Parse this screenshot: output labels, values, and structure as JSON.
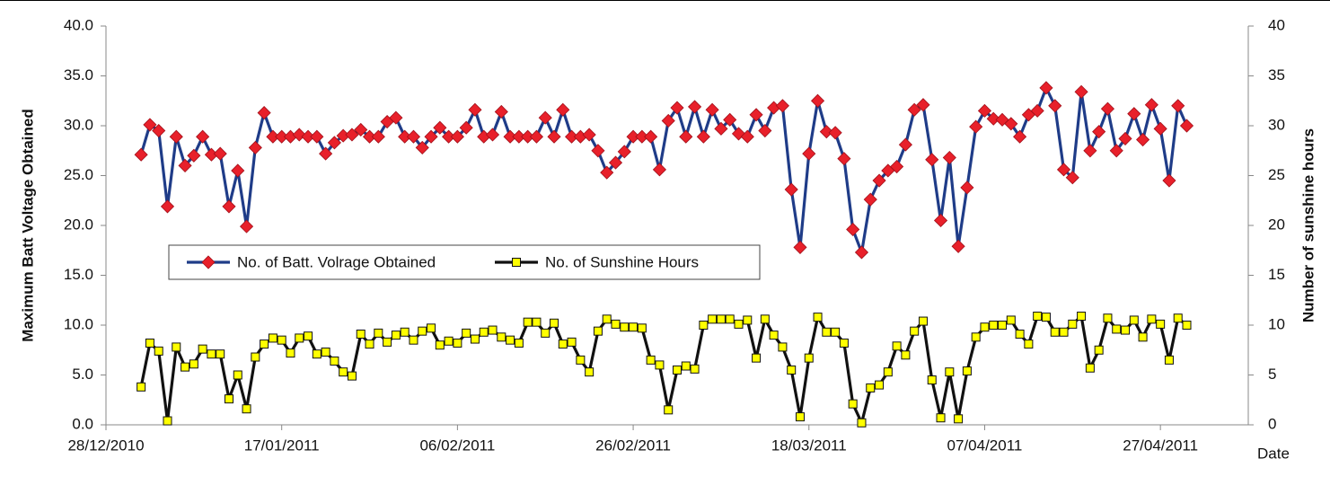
{
  "chart_data": {
    "type": "line",
    "y_label": "Maximum Batt Voltage Obtained",
    "y2_label": "Number of sunshine hours",
    "x_label": "Date",
    "x": [
      "2011-01-01",
      "2011-01-02",
      "2011-01-03",
      "2011-01-04",
      "2011-01-05",
      "2011-01-06",
      "2011-01-07",
      "2011-01-08",
      "2011-01-09",
      "2011-01-10",
      "2011-01-11",
      "2011-01-12",
      "2011-01-13",
      "2011-01-14",
      "2011-01-15",
      "2011-01-16",
      "2011-01-17",
      "2011-01-18",
      "2011-01-19",
      "2011-01-20",
      "2011-01-21",
      "2011-01-22",
      "2011-01-23",
      "2011-01-24",
      "2011-01-25",
      "2011-01-26",
      "2011-01-27",
      "2011-01-28",
      "2011-01-29",
      "2011-01-30",
      "2011-01-31",
      "2011-02-01",
      "2011-02-02",
      "2011-02-03",
      "2011-02-04",
      "2011-02-05",
      "2011-02-06",
      "2011-02-07",
      "2011-02-08",
      "2011-02-09",
      "2011-02-10",
      "2011-02-11",
      "2011-02-12",
      "2011-02-13",
      "2011-02-14",
      "2011-02-15",
      "2011-02-16",
      "2011-02-17",
      "2011-02-18",
      "2011-02-19",
      "2011-02-20",
      "2011-02-21",
      "2011-02-22",
      "2011-02-23",
      "2011-02-24",
      "2011-02-25",
      "2011-02-26",
      "2011-02-27",
      "2011-02-28",
      "2011-03-01",
      "2011-03-02",
      "2011-03-03",
      "2011-03-04",
      "2011-03-05",
      "2011-03-06",
      "2011-03-07",
      "2011-03-08",
      "2011-03-09",
      "2011-03-10",
      "2011-03-11",
      "2011-03-12",
      "2011-03-13",
      "2011-03-14",
      "2011-03-15",
      "2011-03-16",
      "2011-03-17",
      "2011-03-18",
      "2011-03-19",
      "2011-03-20",
      "2011-03-21",
      "2011-03-22",
      "2011-03-23",
      "2011-03-24",
      "2011-03-25",
      "2011-03-26",
      "2011-03-27",
      "2011-03-28",
      "2011-03-29",
      "2011-03-30",
      "2011-03-31",
      "2011-04-01",
      "2011-04-02",
      "2011-04-03",
      "2011-04-04",
      "2011-04-05",
      "2011-04-06",
      "2011-04-07",
      "2011-04-08",
      "2011-04-09",
      "2011-04-10",
      "2011-04-11",
      "2011-04-12",
      "2011-04-13",
      "2011-04-14",
      "2011-04-15",
      "2011-04-16",
      "2011-04-17",
      "2011-04-18",
      "2011-04-19",
      "2011-04-20",
      "2011-04-21",
      "2011-04-22",
      "2011-04-23",
      "2011-04-24",
      "2011-04-25",
      "2011-04-26",
      "2011-04-27",
      "2011-04-28",
      "2011-04-29",
      "2011-04-30"
    ],
    "series": [
      {
        "name": "No. of Batt. Volrage Obtained",
        "color": "#1f3c88",
        "marker_color": "#e8202a",
        "marker": "diamond",
        "values": [
          27.1,
          30.1,
          29.5,
          21.9,
          28.9,
          26.0,
          27.0,
          28.9,
          27.1,
          27.2,
          21.9,
          25.5,
          19.9,
          27.8,
          31.3,
          28.9,
          28.9,
          28.9,
          29.1,
          28.9,
          28.9,
          27.2,
          28.3,
          29.0,
          29.1,
          29.6,
          28.9,
          28.9,
          30.4,
          30.8,
          28.9,
          28.9,
          27.8,
          28.9,
          29.8,
          28.9,
          28.9,
          29.8,
          31.6,
          28.9,
          29.1,
          31.4,
          28.9,
          28.9,
          28.9,
          28.9,
          30.8,
          28.9,
          31.6,
          28.9,
          28.9,
          29.1,
          27.5,
          25.3,
          26.3,
          27.4,
          28.9,
          28.9,
          28.9,
          25.6,
          30.5,
          31.8,
          28.9,
          31.9,
          28.9,
          31.6,
          29.7,
          30.6,
          29.2,
          28.9,
          31.1,
          29.5,
          31.8,
          32.0,
          23.6,
          17.8,
          27.2,
          32.5,
          29.4,
          29.3,
          26.7,
          19.6,
          17.3,
          22.6,
          24.5,
          25.5,
          25.9,
          28.1,
          31.6,
          32.1,
          26.6,
          20.5,
          26.8,
          17.9,
          23.8,
          29.9,
          31.5,
          30.7,
          30.6,
          30.2,
          28.9,
          31.1,
          31.5,
          33.8,
          32.0,
          25.6,
          24.8,
          33.4,
          27.5,
          29.4,
          31.7,
          27.5,
          28.7,
          31.2,
          28.6,
          32.1,
          29.7,
          24.5,
          32.0,
          30.0
        ]
      },
      {
        "name": "No. of Sunshine Hours",
        "color": "#111111",
        "marker_color": "#ffff00",
        "marker": "square",
        "axis": "y2",
        "values": [
          3.8,
          8.2,
          7.4,
          0.4,
          7.8,
          5.8,
          6.1,
          7.6,
          7.1,
          7.1,
          2.6,
          5.0,
          1.6,
          6.8,
          8.1,
          8.7,
          8.5,
          7.2,
          8.7,
          8.9,
          7.1,
          7.3,
          6.4,
          5.3,
          4.9,
          9.1,
          8.1,
          9.2,
          8.3,
          9.0,
          9.3,
          8.5,
          9.4,
          9.7,
          8.0,
          8.4,
          8.2,
          9.2,
          8.6,
          9.3,
          9.5,
          8.8,
          8.5,
          8.2,
          10.3,
          10.3,
          9.2,
          10.2,
          8.1,
          8.3,
          6.5,
          5.3,
          9.4,
          10.6,
          10.1,
          9.8,
          9.8,
          9.7,
          6.5,
          6.0,
          1.5,
          5.5,
          5.9,
          5.6,
          10.0,
          10.6,
          10.6,
          10.6,
          10.1,
          10.5,
          6.7,
          10.6,
          9.0,
          7.8,
          5.5,
          0.8,
          6.7,
          10.8,
          9.3,
          9.3,
          8.2,
          2.1,
          0.2,
          3.7,
          4.0,
          5.3,
          7.9,
          7.0,
          9.4,
          10.4,
          4.5,
          0.7,
          5.3,
          0.6,
          5.4,
          8.8,
          9.8,
          10.0,
          10.0,
          10.5,
          9.1,
          8.1,
          10.9,
          10.8,
          9.3,
          9.3,
          10.1,
          10.9,
          5.7,
          7.5,
          10.7,
          9.6,
          9.5,
          10.5,
          8.8,
          10.6,
          10.1,
          6.5,
          10.7,
          10.0
        ]
      }
    ],
    "xlim": [
      "2010-12-28",
      "2011-05-07"
    ],
    "xticks": [
      {
        "value": "2010-12-28",
        "label": "28/12/2010"
      },
      {
        "value": "2011-01-17",
        "label": "17/01/2011"
      },
      {
        "value": "2011-02-06",
        "label": "06/02/2011"
      },
      {
        "value": "2011-02-26",
        "label": "26/02/2011"
      },
      {
        "value": "2011-03-18",
        "label": "18/03/2011"
      },
      {
        "value": "2011-04-07",
        "label": "07/04/2011"
      },
      {
        "value": "2011-04-27",
        "label": "27/04/2011"
      }
    ],
    "ylim": [
      0,
      40
    ],
    "yticks": [
      {
        "value": 0,
        "label": "0.0"
      },
      {
        "value": 5,
        "label": "5.0"
      },
      {
        "value": 10,
        "label": "10.0"
      },
      {
        "value": 15,
        "label": "15.0"
      },
      {
        "value": 20,
        "label": "20.0"
      },
      {
        "value": 25,
        "label": "25.0"
      },
      {
        "value": 30,
        "label": "30.0"
      },
      {
        "value": 35,
        "label": "35.0"
      },
      {
        "value": 40,
        "label": "40.0"
      }
    ],
    "y2lim": [
      0,
      40
    ],
    "y2ticks": [
      0,
      5,
      10,
      15,
      20,
      25,
      30,
      35,
      40
    ]
  }
}
